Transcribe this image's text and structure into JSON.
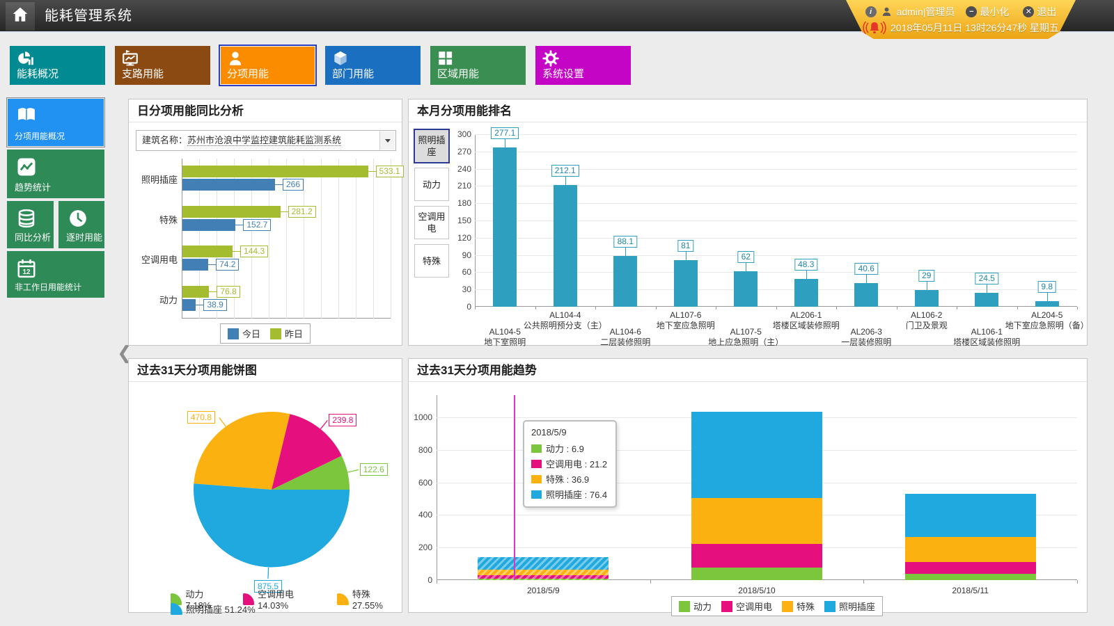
{
  "header": {
    "title": "能耗管理系统",
    "user": "admin|管理员",
    "minimize_label": "最小化",
    "logout_label": "退出",
    "datetime": "2018年05月11日 13时26分47秒 星期五"
  },
  "nav": {
    "items": [
      {
        "label": "能耗概况",
        "icon": "pie-chart-icon",
        "color": "#018A91",
        "selected": false
      },
      {
        "label": "支路用能",
        "icon": "branch-board-icon",
        "color": "#8B4A12",
        "selected": false
      },
      {
        "label": "分项用能",
        "icon": "person-icon",
        "color": "#FB8C00",
        "selected": true
      },
      {
        "label": "部门用能",
        "icon": "cube-icon",
        "color": "#1A6FC0",
        "selected": false
      },
      {
        "label": "区域用能",
        "icon": "grid-icon",
        "color": "#3A8E51",
        "selected": false
      },
      {
        "label": "系统设置",
        "icon": "gear-icon",
        "color": "#C505C5",
        "selected": false
      }
    ]
  },
  "sidebar": {
    "items": [
      {
        "label": "分项用能概况",
        "icon": "book-icon",
        "color": "#2191F2",
        "selected": true,
        "w": "full"
      },
      {
        "label": "趋势统计",
        "icon": "trend-icon",
        "color": "#2E8B57",
        "selected": false,
        "w": "full"
      },
      {
        "label": "同比分析",
        "icon": "database-icon",
        "color": "#2E8B57",
        "selected": false,
        "w": "half-left"
      },
      {
        "label": "逐时用能",
        "icon": "clock-icon",
        "color": "#2E8B57",
        "selected": false,
        "w": "half-right"
      },
      {
        "label": "非工作日用能统计",
        "icon": "calendar-icon",
        "color": "#2E8B57",
        "selected": false,
        "w": "full"
      }
    ]
  },
  "panels": {
    "compare": {
      "title": "日分项用能同比分析",
      "building_label": "建筑名称：",
      "building_name": "苏州市沧浪中学监控建筑能耗监测系统",
      "chart_data": {
        "type": "bar",
        "orientation": "horizontal",
        "categories": [
          "照明插座",
          "特殊",
          "空调用电",
          "动力"
        ],
        "series": [
          {
            "name": "昨日",
            "color": "#A4BC2F",
            "values": [
              533.1,
              281.2,
              144.3,
              76.8
            ]
          },
          {
            "name": "今日",
            "color": "#417FB5",
            "values": [
              266,
              152.7,
              74.2,
              38.9
            ]
          }
        ],
        "legend_order": [
          "今日",
          "昨日"
        ],
        "xlim": [
          0,
          600
        ],
        "grid_step": 50
      }
    },
    "ranking": {
      "title": "本月分项用能排名",
      "tabs": [
        {
          "label": "照明插座",
          "selected": true
        },
        {
          "label": "动力",
          "selected": false
        },
        {
          "label": "空调用电",
          "selected": false
        },
        {
          "label": "特殊",
          "selected": false
        }
      ],
      "chart_data": {
        "type": "bar",
        "bar_color": "#2E9FBE",
        "ylim": [
          0,
          300
        ],
        "ytick_step": 30,
        "items": [
          {
            "code": "AL104-5",
            "name": "地下室照明",
            "value": 277.1
          },
          {
            "code": "AL104-4",
            "name": "公共照明预分支（主）",
            "value": 212.1
          },
          {
            "code": "AL104-6",
            "name": "二层装修照明",
            "value": 88.1
          },
          {
            "code": "AL107-6",
            "name": "地下室应急照明",
            "value": 81
          },
          {
            "code": "AL107-5",
            "name": "地上应急照明（主）",
            "value": 62
          },
          {
            "code": "AL206-1",
            "name": "塔楼区域装修照明",
            "value": 48.3
          },
          {
            "code": "AL206-3",
            "name": "一层装修照明",
            "value": 40.6
          },
          {
            "code": "AL106-2",
            "name": "门卫及景观",
            "value": 29
          },
          {
            "code": "AL106-1",
            "name": "塔楼区域装修照明",
            "value": 24.5
          },
          {
            "code": "AL204-5",
            "name": "地下室应急照明（备）",
            "value": 9.8
          }
        ]
      }
    },
    "pie": {
      "title": "过去31天分项用能饼图",
      "chart_data": {
        "type": "pie",
        "slices": [
          {
            "name": "动力",
            "value": 122.6,
            "pct": 7.18,
            "color": "#7CC63E"
          },
          {
            "name": "空调用电",
            "value": 239.8,
            "pct": 14.03,
            "color": "#E5107D"
          },
          {
            "name": "特殊",
            "value": 470.8,
            "pct": 27.55,
            "color": "#FBB211"
          },
          {
            "name": "照明插座",
            "value": 875.5,
            "pct": 51.24,
            "color": "#1FA9DE"
          }
        ]
      }
    },
    "trend": {
      "title": "过去31天分项用能趋势",
      "chart_data": {
        "type": "stacked-bar",
        "x": [
          "2018/5/9",
          "2018/5/10",
          "2018/5/11"
        ],
        "series": [
          {
            "name": "动力",
            "color": "#7CC63E",
            "values": [
              6.9,
              76.8,
              38.9
            ]
          },
          {
            "name": "空调用电",
            "color": "#E5107D",
            "values": [
              21.2,
              144.3,
              74.2
            ]
          },
          {
            "name": "特殊",
            "color": "#FBB211",
            "values": [
              36.9,
              281.2,
              152.7
            ]
          },
          {
            "name": "照明插座",
            "color": "#1FA9DE",
            "values": [
              76.4,
              533.1,
              266
            ]
          }
        ],
        "ylim": [
          0,
          1100
        ],
        "ytick_step": 200,
        "highlight_index": 0,
        "pointer_color": "#E233C9"
      },
      "tooltip": {
        "title": "2018/5/9",
        "rows": [
          {
            "name": "动力",
            "value": 6.9
          },
          {
            "name": "空调用电",
            "value": 21.2
          },
          {
            "name": "特殊",
            "value": 36.9
          },
          {
            "name": "照明插座",
            "value": 76.4
          }
        ]
      }
    }
  }
}
